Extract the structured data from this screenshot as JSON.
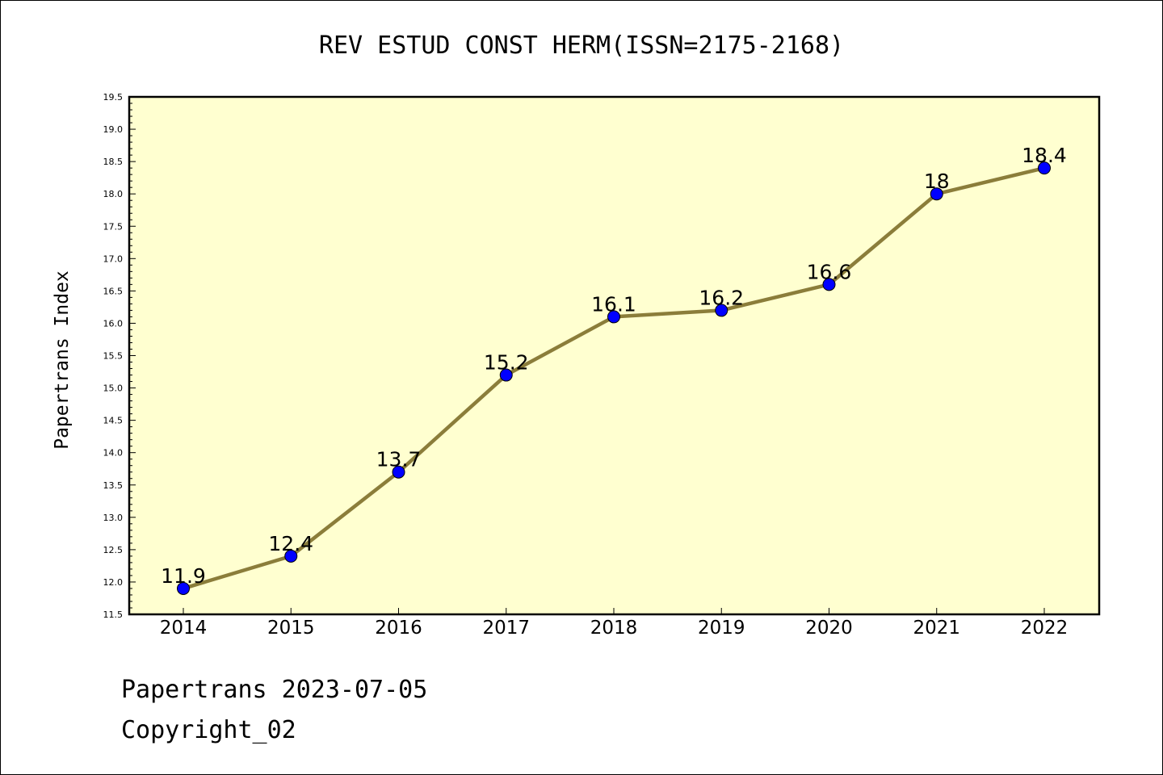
{
  "chart_data": {
    "type": "line",
    "title": "REV ESTUD CONST HERM(ISSN=2175-2168)",
    "ylabel": "Papertrans Index",
    "xlabel": "",
    "categories": [
      "2014",
      "2015",
      "2016",
      "2017",
      "2018",
      "2019",
      "2020",
      "2021",
      "2022"
    ],
    "series": [
      {
        "values": [
          11.9,
          12.4,
          13.7,
          15.2,
          16.1,
          16.2,
          16.6,
          18.0,
          18.4
        ],
        "labels": [
          "11.9",
          "12.4",
          "13.7",
          "15.2",
          "16.1",
          "16.2",
          "16.6",
          "18",
          "18.4"
        ],
        "line_color": "#8b7d3a",
        "marker_color": "#0000ff"
      }
    ],
    "ylim": [
      11.5,
      19.5
    ],
    "yticks": [
      "11.5",
      "12.0",
      "12.5",
      "13.0",
      "13.5",
      "14.0",
      "14.5",
      "15.0",
      "15.5",
      "16.0",
      "16.5",
      "17.0",
      "17.5",
      "18.0",
      "18.5",
      "19.0",
      "19.5"
    ],
    "plot_background": "#ffffd0",
    "grid": false,
    "legend": "none"
  },
  "footer": {
    "line1": "Papertrans 2023-07-05",
    "line2": "Copyright_02"
  }
}
